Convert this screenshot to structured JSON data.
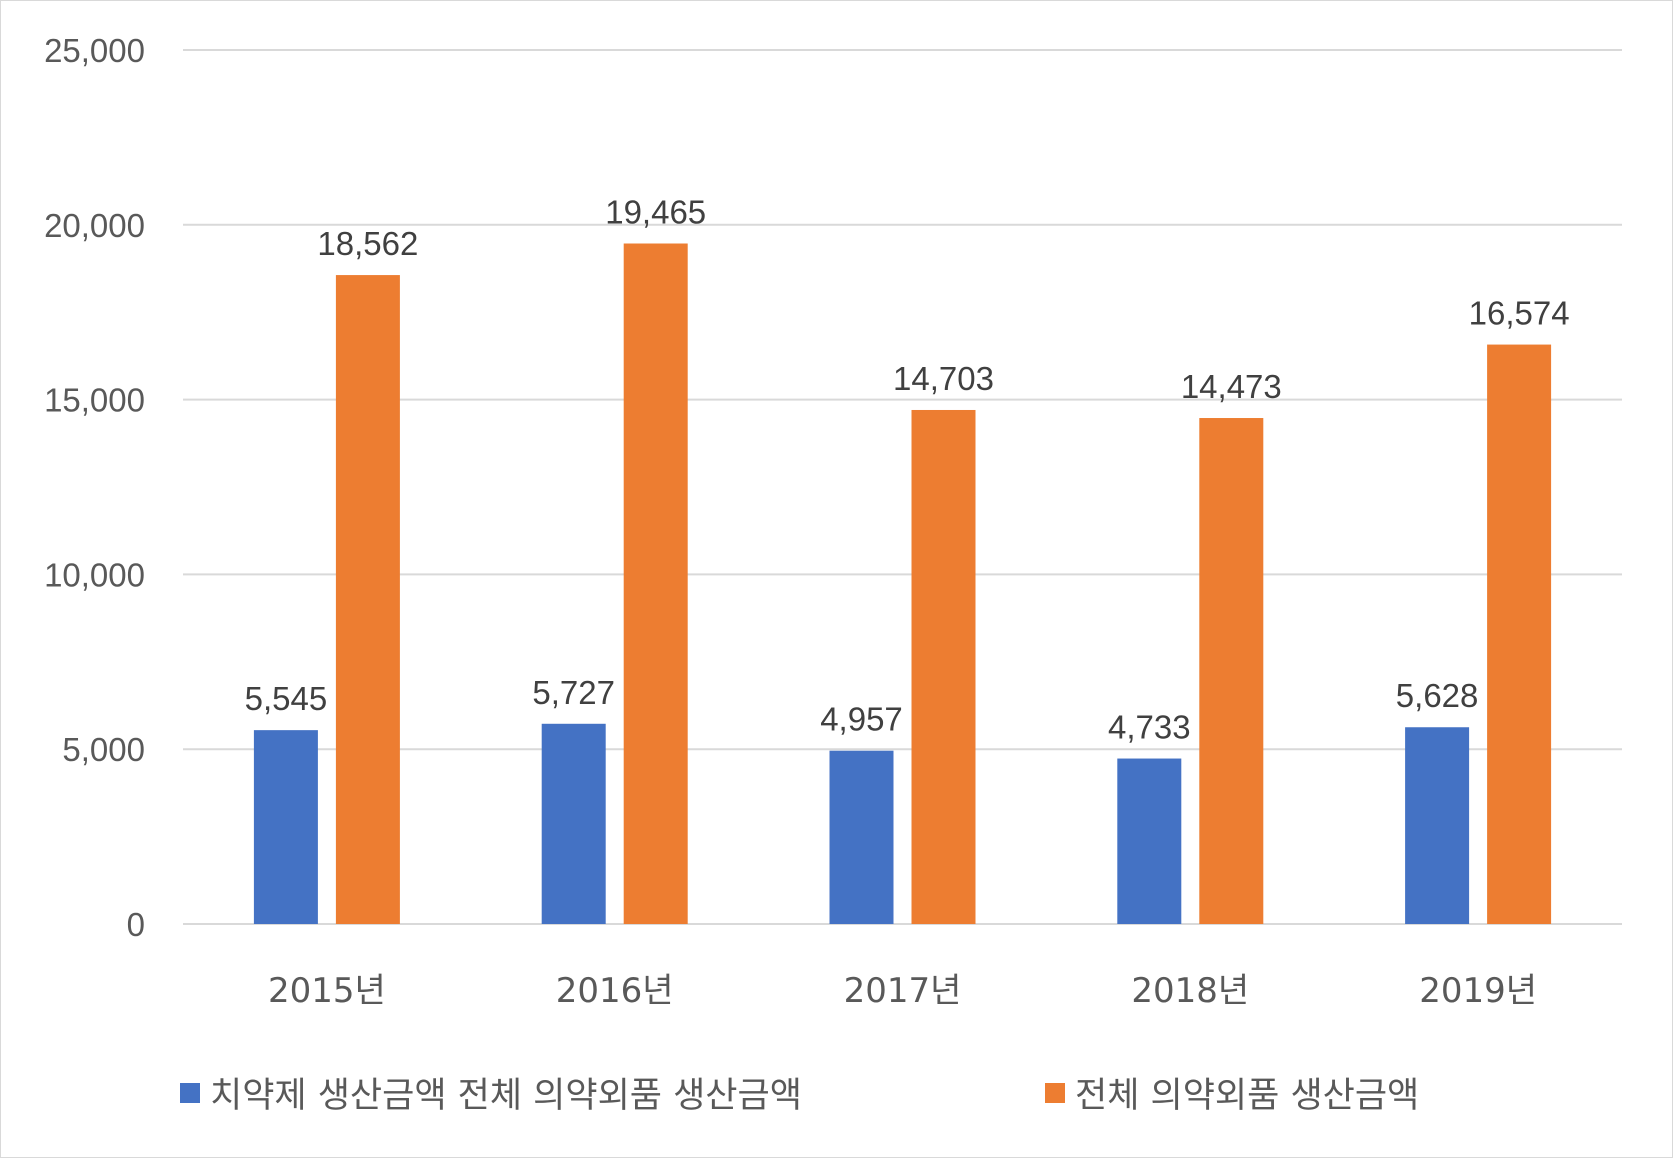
{
  "chart_data": {
    "type": "bar",
    "categories": [
      "2015년",
      "2016년",
      "2017년",
      "2018년",
      "2019년"
    ],
    "series": [
      {
        "name": "치약제 생산금액 전체 의약외품 생산금액",
        "color": "#4472C4",
        "values": [
          5545,
          5727,
          4957,
          4733,
          5628
        ]
      },
      {
        "name": "전체 의약외품 생산금액",
        "color": "#ED7D31",
        "values": [
          18562,
          19465,
          14703,
          14473,
          16574
        ]
      }
    ],
    "ylim": [
      0,
      25000
    ],
    "yticks": [
      "0",
      "5,000",
      "10,000",
      "15,000",
      "20,000",
      "25,000"
    ],
    "data_labels": [
      [
        "5,545",
        "5,727",
        "4,957",
        "4,733",
        "5,628"
      ],
      [
        "18,562",
        "19,465",
        "14,703",
        "14,473",
        "16,574"
      ]
    ],
    "grid": true,
    "legend": "bottom"
  }
}
